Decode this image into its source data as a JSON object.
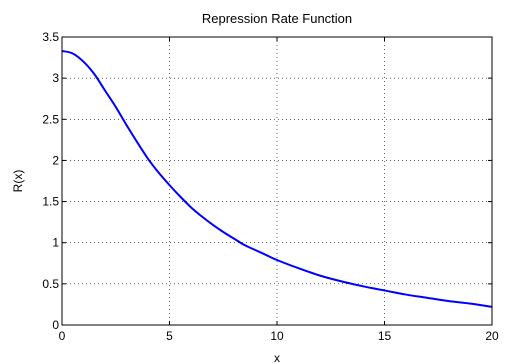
{
  "chart_data": {
    "type": "line",
    "title": "Repression Rate Function",
    "xlabel": "x",
    "ylabel": "R(x)",
    "xlim": [
      0,
      20
    ],
    "ylim": [
      0,
      3.5
    ],
    "xticks": [
      0,
      5,
      10,
      15,
      20
    ],
    "xtick_labels": [
      "0",
      "5",
      "10",
      "15",
      "20"
    ],
    "yticks": [
      0,
      0.5,
      1,
      1.5,
      2,
      2.5,
      3,
      3.5
    ],
    "ytick_labels": [
      "0",
      "0.5",
      "1",
      "1.5",
      "2",
      "2.5",
      "3",
      "3.5"
    ],
    "grid": true,
    "grid_style": "dotted",
    "series": [
      {
        "color": "#0000ff",
        "x": [
          0,
          0.5,
          1,
          1.5,
          2,
          2.5,
          3,
          3.5,
          4,
          4.5,
          5,
          5.5,
          6,
          6.5,
          7,
          7.5,
          8,
          8.5,
          9,
          9.5,
          10,
          11,
          12,
          13,
          14,
          15,
          16,
          17,
          18,
          19,
          20
        ],
        "y": [
          3.33,
          3.3,
          3.2,
          3.05,
          2.85,
          2.65,
          2.43,
          2.22,
          2.02,
          1.85,
          1.7,
          1.56,
          1.43,
          1.32,
          1.22,
          1.13,
          1.05,
          0.97,
          0.91,
          0.85,
          0.79,
          0.69,
          0.6,
          0.53,
          0.47,
          0.42,
          0.37,
          0.33,
          0.29,
          0.26,
          0.22
        ]
      }
    ]
  }
}
